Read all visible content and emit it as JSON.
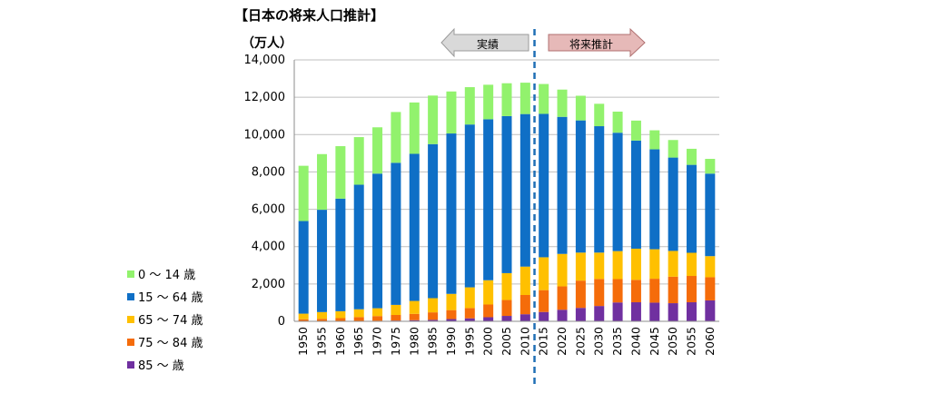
{
  "chart_data": {
    "type": "bar",
    "stacked": true,
    "title": "【日本の将来人口推計】",
    "unit_label": "（万人）",
    "ylim": [
      0,
      14000
    ],
    "yticks": [
      "0",
      "2,000",
      "4,000",
      "6,000",
      "8,000",
      "10,000",
      "12,000",
      "14,000"
    ],
    "categories": [
      "1950",
      "1955",
      "1960",
      "1965",
      "1970",
      "1975",
      "1980",
      "1985",
      "1990",
      "1995",
      "2000",
      "2005",
      "2010",
      "2015",
      "2020",
      "2025",
      "2030",
      "2035",
      "2040",
      "2045",
      "2050",
      "2055",
      "2060"
    ],
    "series": [
      {
        "name": "85 ～ 歳",
        "color": "#7030a0",
        "values": [
          10,
          15,
          20,
          25,
          30,
          40,
          60,
          80,
          120,
          160,
          220,
          290,
          380,
          500,
          620,
          720,
          820,
          1010,
          1020,
          1000,
          970,
          1020,
          1120
        ]
      },
      {
        "name": "75 ～ 84 歳",
        "color": "#f56c0a",
        "values": [
          100,
          120,
          150,
          200,
          250,
          300,
          340,
          400,
          480,
          550,
          680,
          850,
          1030,
          1170,
          1250,
          1460,
          1450,
          1250,
          1200,
          1280,
          1420,
          1410,
          1240
        ]
      },
      {
        "name": "65 ～ 74 歳",
        "color": "#ffc000",
        "values": [
          300,
          360,
          370,
          420,
          420,
          540,
          690,
          760,
          870,
          1110,
          1300,
          1440,
          1520,
          1760,
          1740,
          1500,
          1410,
          1500,
          1670,
          1580,
          1380,
          1240,
          1130
        ]
      },
      {
        "name": "15 ～ 64 歳",
        "color": "#0f6fc6",
        "values": [
          4960,
          5480,
          6030,
          6670,
          7210,
          7610,
          7880,
          8250,
          8590,
          8720,
          8620,
          8410,
          8170,
          7680,
          7340,
          7080,
          6770,
          6340,
          5790,
          5350,
          5000,
          4710,
          4420
        ]
      },
      {
        "name": "0 ～ 14 歳",
        "color": "#92f26d",
        "values": [
          2960,
          2980,
          2810,
          2550,
          2480,
          2720,
          2750,
          2600,
          2250,
          2000,
          1850,
          1760,
          1680,
          1600,
          1460,
          1320,
          1200,
          1130,
          1070,
          1020,
          940,
          860,
          790
        ]
      }
    ],
    "legend_order": [
      "0 ～ 14 歳",
      "15 ～ 64 歳",
      "65 ～ 74 歳",
      "75 ～ 84 歳",
      "85 ～ 歳"
    ],
    "legend_position": "left",
    "grid": true,
    "divider_after": "2010",
    "arrow_left_label": "実績",
    "arrow_right_label": "将来推計",
    "arrow_left_color": "#d9d9d9",
    "arrow_right_color": "#e6b9b8",
    "divider_color": "#1f6fb5"
  }
}
